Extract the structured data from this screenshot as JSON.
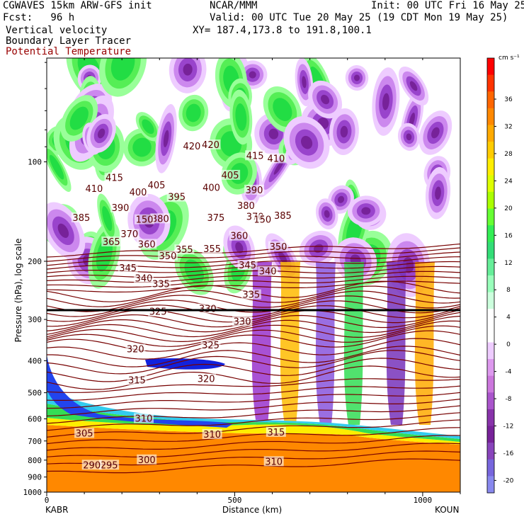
{
  "header": {
    "left_line1": "CGWAVES 15km ARW-GFS init",
    "left_line2": "Fcst:   96 h",
    "left_line3": "Vertical velocity",
    "left_line4": "Boundary Layer Tracer",
    "left_line5": "Potential Temperature",
    "center_line1": "NCAR/MMM",
    "init_line": "Init: 00 UTC Fri 16 May 25",
    "valid_line": "Valid: 00 UTC Tue 20 May 25 (19 CDT Mon 19 May 25)",
    "xy_line": "XY= 187.4,173.8 to 191.8,100.1"
  },
  "chart_data": {
    "type": "heatmap",
    "xlabel": "Distance (km)",
    "ylabel": "Pressure (hPa), log scale",
    "xlim": [
      0,
      1100
    ],
    "x_ticks": [
      "0",
      "500",
      "1000"
    ],
    "y_ticks": [
      "100",
      "200",
      "300",
      "400",
      "500",
      "600",
      "700",
      "800",
      "900",
      "1000"
    ],
    "endpoint_left": "KABR",
    "endpoint_right": "KOUN",
    "colorbar": {
      "unit": "cm s⁻¹",
      "labels": [
        "36",
        "32",
        "28",
        "24",
        "20",
        "16",
        "12",
        "8",
        "4",
        "0",
        "-4",
        "-8",
        "-12",
        "-16",
        "-20"
      ],
      "colors": [
        "#ff0000",
        "#ff3300",
        "#ff6600",
        "#ff8800",
        "#ffaa00",
        "#ffcc00",
        "#ffee00",
        "#ddff00",
        "#aaff00",
        "#66ff33",
        "#33ee55",
        "#33dd77",
        "#66ee99",
        "#99ffbb",
        "#ccffdd",
        "#ffffff",
        "#ffffff",
        "#eeccff",
        "#dd99ee",
        "#cc77dd",
        "#aa55cc",
        "#8833aa",
        "#772299",
        "#8844bb",
        "#7766dd",
        "#8888ee"
      ]
    },
    "theta_contour_labels": [
      {
        "text": "420",
        "x": 386,
        "p": 90
      },
      {
        "text": "420",
        "x": 436,
        "p": 89
      },
      {
        "text": "415",
        "x": 180,
        "p": 112
      },
      {
        "text": "415",
        "x": 554,
        "p": 96
      },
      {
        "text": "410",
        "x": 126,
        "p": 121
      },
      {
        "text": "410",
        "x": 610,
        "p": 98
      },
      {
        "text": "405",
        "x": 292,
        "p": 118
      },
      {
        "text": "405",
        "x": 488,
        "p": 110
      },
      {
        "text": "400",
        "x": 243,
        "p": 124
      },
      {
        "text": "400",
        "x": 438,
        "p": 120
      },
      {
        "text": "395",
        "x": 346,
        "p": 128
      },
      {
        "text": "390",
        "x": 196,
        "p": 138
      },
      {
        "text": "390",
        "x": 552,
        "p": 122
      },
      {
        "text": "385",
        "x": 92,
        "p": 148
      },
      {
        "text": "385",
        "x": 628,
        "p": 146
      },
      {
        "text": "380",
        "x": 302,
        "p": 149
      },
      {
        "text": "380",
        "x": 530,
        "p": 136
      },
      {
        "text": "375",
        "x": 450,
        "p": 148
      },
      {
        "text": "370",
        "x": 220,
        "p": 166
      },
      {
        "text": "370",
        "x": 554,
        "p": 147
      },
      {
        "text": "365",
        "x": 172,
        "p": 175
      },
      {
        "text": "360",
        "x": 266,
        "p": 178
      },
      {
        "text": "360",
        "x": 512,
        "p": 168
      },
      {
        "text": "355",
        "x": 366,
        "p": 185
      },
      {
        "text": "355",
        "x": 440,
        "p": 184
      },
      {
        "text": "350",
        "x": 322,
        "p": 193
      },
      {
        "text": "350",
        "x": 616,
        "p": 181
      },
      {
        "text": "345",
        "x": 216,
        "p": 210
      },
      {
        "text": "345",
        "x": 534,
        "p": 206
      },
      {
        "text": "340",
        "x": 258,
        "p": 226
      },
      {
        "text": "340",
        "x": 588,
        "p": 215
      },
      {
        "text": "335",
        "x": 304,
        "p": 235
      },
      {
        "text": "335",
        "x": 544,
        "p": 253
      },
      {
        "text": "330",
        "x": 428,
        "p": 279
      },
      {
        "text": "330",
        "x": 520,
        "p": 305
      },
      {
        "text": "325",
        "x": 296,
        "p": 285
      },
      {
        "text": "325",
        "x": 436,
        "p": 360
      },
      {
        "text": "320",
        "x": 236,
        "p": 370
      },
      {
        "text": "320",
        "x": 424,
        "p": 455
      },
      {
        "text": "315",
        "x": 240,
        "p": 460
      },
      {
        "text": "315",
        "x": 610,
        "p": 660
      },
      {
        "text": "310",
        "x": 258,
        "p": 600
      },
      {
        "text": "310",
        "x": 440,
        "p": 670
      },
      {
        "text": "310",
        "x": 604,
        "p": 810
      },
      {
        "text": "305",
        "x": 100,
        "p": 665
      },
      {
        "text": "300",
        "x": 266,
        "p": 800
      },
      {
        "text": "295",
        "x": 166,
        "p": 830
      },
      {
        "text": "290",
        "x": 120,
        "p": 830
      }
    ],
    "tracer_contour_labels": [
      {
        "text": "150",
        "x": 260,
        "p": 150
      },
      {
        "text": "150",
        "x": 574,
        "p": 150
      }
    ]
  }
}
